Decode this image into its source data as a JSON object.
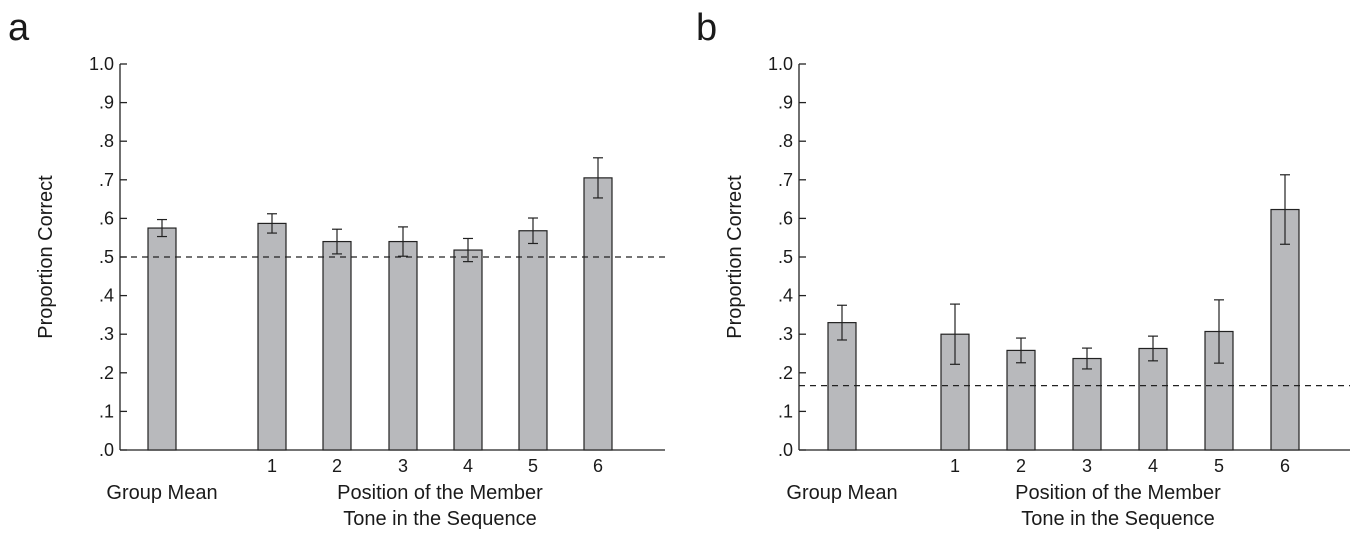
{
  "chart_data": [
    {
      "panel_label": "a",
      "type": "bar",
      "categories": [
        "Group Mean",
        "1",
        "2",
        "3",
        "4",
        "5",
        "6"
      ],
      "values": [
        0.575,
        0.587,
        0.54,
        0.54,
        0.518,
        0.568,
        0.705
      ],
      "error": [
        0.022,
        0.025,
        0.032,
        0.038,
        0.03,
        0.033,
        0.052
      ],
      "chance_line": 0.5,
      "ylim": [
        0,
        1
      ],
      "yticks": [
        ".0",
        ".1",
        ".2",
        ".3",
        ".4",
        ".5",
        ".6",
        ".7",
        ".8",
        ".9",
        "1.0"
      ],
      "ylabel": "Proportion Correct",
      "xlabel_left": "Group Mean",
      "xlabel_line1": "Position of the Member",
      "xlabel_line2": "Tone in the Sequence",
      "colors": {
        "bar": "#b8b9bc",
        "outline": "#222222"
      }
    },
    {
      "panel_label": "b",
      "type": "bar",
      "categories": [
        "Group Mean",
        "1",
        "2",
        "3",
        "4",
        "5",
        "6"
      ],
      "values": [
        0.33,
        0.3,
        0.258,
        0.237,
        0.263,
        0.307,
        0.623
      ],
      "error": [
        0.045,
        0.078,
        0.032,
        0.027,
        0.032,
        0.082,
        0.09
      ],
      "chance_line": 0.1667,
      "ylim": [
        0,
        1
      ],
      "yticks": [
        ".0",
        ".1",
        ".2",
        ".3",
        ".4",
        ".5",
        ".6",
        ".7",
        ".8",
        ".9",
        "1.0"
      ],
      "ylabel": "Proportion Correct",
      "xlabel_left": "Group Mean",
      "xlabel_line1": "Position of the Member",
      "xlabel_line2": "Tone in the Sequence",
      "colors": {
        "bar": "#b8b9bc",
        "outline": "#222222"
      }
    }
  ]
}
